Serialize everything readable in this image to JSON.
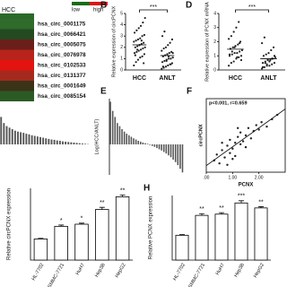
{
  "heatmap": {
    "label": "HCC",
    "legend": [
      "low",
      "high"
    ],
    "legend_colors": [
      "#1a6b1a",
      "#e01010"
    ],
    "rows": [
      {
        "label": "hsa_circ_0001175",
        "color": "#2f6b2a"
      },
      {
        "label": "hsa_circ_0066421",
        "color": "#244a22"
      },
      {
        "label": "hsa_circ_0005075",
        "color": "#6a1f1a"
      },
      {
        "label": "hsa_circ_0076978",
        "color": "#b8231b"
      },
      {
        "label": "hsa_circ_0102533",
        "color": "#e3140f"
      },
      {
        "label": "hsa_circ_0131377",
        "color": "#a52a1d"
      },
      {
        "label": "hsa_circ_0001649",
        "color": "#3a3318"
      },
      {
        "label": "hsa_circ_0085154",
        "color": "#2c5a25"
      }
    ]
  },
  "chart_data": [
    {
      "type": "strip",
      "panel": "B",
      "ylabel": "Relative expression of circPCNX",
      "categories": [
        "HCC",
        "ANLT"
      ],
      "significance": "***",
      "color": "#222",
      "ylim": [
        0,
        5
      ],
      "yticks": [
        0,
        1,
        2,
        3,
        4,
        5
      ],
      "values": [
        [
          0.4,
          0.7,
          0.9,
          1.1,
          1.2,
          1.4,
          1.5,
          1.6,
          1.7,
          1.8,
          1.9,
          2.0,
          2.0,
          2.1,
          2.2,
          2.3,
          2.4,
          2.5,
          2.6,
          2.7,
          2.8,
          3.0,
          3.1,
          3.3,
          3.5,
          3.7,
          3.9,
          4.2,
          4.6,
          1.3,
          1.8,
          2.2,
          2.6,
          0.6
        ],
        [
          0.1,
          0.2,
          0.3,
          0.4,
          0.5,
          0.6,
          0.7,
          0.8,
          0.9,
          1.0,
          1.0,
          1.1,
          1.2,
          1.3,
          1.4,
          1.5,
          1.6,
          1.7,
          1.9,
          2.0,
          2.2,
          2.4,
          2.7,
          3.0,
          3.4,
          0.8,
          1.2,
          0.5,
          1.5,
          0.3
        ]
      ]
    },
    {
      "type": "strip",
      "panel": "D",
      "ylabel": "Relative expression of PCNX mRNA",
      "categories": [
        "HCC",
        "ANLT"
      ],
      "significance": "***",
      "color": "#222",
      "ylim": [
        0,
        4
      ],
      "yticks": [
        0,
        1,
        2,
        3,
        4
      ],
      "values": [
        [
          0.3,
          0.5,
          0.6,
          0.8,
          0.9,
          1.0,
          1.0,
          1.1,
          1.2,
          1.2,
          1.3,
          1.4,
          1.5,
          1.6,
          1.7,
          1.8,
          2.0,
          2.2,
          2.4,
          2.7,
          3.0,
          3.4,
          0.7,
          1.1,
          1.3,
          1.6,
          0.9,
          1.9
        ],
        [
          0.1,
          0.2,
          0.3,
          0.3,
          0.4,
          0.5,
          0.5,
          0.6,
          0.7,
          0.7,
          0.8,
          0.9,
          1.0,
          1.1,
          1.2,
          1.4,
          1.6,
          1.9,
          2.3,
          0.4,
          0.6,
          0.8,
          1.0,
          0.2,
          0.5,
          0.7
        ]
      ]
    },
    {
      "type": "waterfall",
      "color": "#555",
      "ylim": [
        -1,
        1.5
      ],
      "values": [
        0.9,
        0.7,
        0.6,
        0.55,
        0.5,
        0.45,
        0.42,
        0.4,
        0.38,
        0.35,
        0.33,
        0.3,
        0.28,
        0.26,
        0.24,
        0.22,
        0.2,
        0.18,
        0.16,
        0.15,
        0.13,
        0.12,
        0.1,
        0.09,
        0.08,
        0.07,
        0.06,
        0.05,
        0.04,
        0.03,
        0.02,
        0.01
      ]
    },
    {
      "type": "waterfall",
      "panel": "E",
      "ylabel": "Log(HCC/ANLT)",
      "color": "#555",
      "ylim": [
        -1,
        1.5
      ],
      "values": [
        1.4,
        1.1,
        0.9,
        0.7,
        0.6,
        0.5,
        0.42,
        0.35,
        0.3,
        0.25,
        0.2,
        0.16,
        0.12,
        0.09,
        0.06,
        0.04,
        0.02,
        -0.02,
        -0.05,
        -0.08,
        -0.12,
        -0.16,
        -0.2,
        -0.25,
        -0.3,
        -0.36,
        -0.42,
        -0.5,
        -0.58,
        -0.68,
        -0.8,
        -0.92
      ]
    },
    {
      "type": "scatter",
      "panel": "F",
      "annotation": "p<0.001, r=0.659",
      "xlabel": "PCNX",
      "ylabel": "circPCNX",
      "color": "#222",
      "xlim": [
        0,
        3
      ],
      "ylim": [
        0,
        5
      ],
      "xticks": [
        {
          "value": 0,
          "label": ".00"
        },
        {
          "value": 1,
          "label": "1.00"
        },
        {
          "value": 2,
          "label": "2.00"
        }
      ],
      "x": [
        0.3,
        0.4,
        0.5,
        0.6,
        0.7,
        0.8,
        0.9,
        0.9,
        1.0,
        1.1,
        1.1,
        1.2,
        1.3,
        1.3,
        1.4,
        1.5,
        1.6,
        1.7,
        1.8,
        1.9,
        2.0,
        2.1,
        2.3,
        2.5,
        2.7,
        1.0,
        0.6,
        1.5,
        0.8,
        1.2
      ],
      "y": [
        0.8,
        1.2,
        0.6,
        1.5,
        1.0,
        1.8,
        1.3,
        2.2,
        1.6,
        2.0,
        1.1,
        2.4,
        1.9,
        2.7,
        2.1,
        2.5,
        3.0,
        2.3,
        2.8,
        3.2,
        2.9,
        3.4,
        3.1,
        3.6,
        3.9,
        0.9,
        2.0,
        1.7,
        0.5,
        3.0
      ]
    },
    {
      "type": "bar",
      "ylabel": "Relative circPCNX expression",
      "color": "#fff",
      "categories": [
        "HL-7702",
        "SMMC-7721",
        "HuH7",
        "Hep3B",
        "HepG2"
      ],
      "values": [
        1.0,
        1.6,
        1.7,
        2.4,
        3.0
      ],
      "errors": [
        0.03,
        0.06,
        0.05,
        0.1,
        0.08
      ],
      "stars": [
        null,
        "*",
        "*",
        "**",
        "**"
      ],
      "ylim": [
        0,
        3.4
      ]
    },
    {
      "type": "bar",
      "panel": "H",
      "ylabel": "Relative PCNX expression",
      "color": "#fff",
      "categories": [
        "HL-7702",
        "SMMC-7721",
        "HuH7",
        "Hep3B",
        "HepG2"
      ],
      "values": [
        1.0,
        1.8,
        1.85,
        2.3,
        2.1
      ],
      "errors": [
        0.03,
        0.07,
        0.06,
        0.09,
        0.05
      ],
      "stars": [
        null,
        "**",
        "**",
        "***",
        "**"
      ],
      "ylim": [
        0,
        2.6
      ]
    }
  ]
}
